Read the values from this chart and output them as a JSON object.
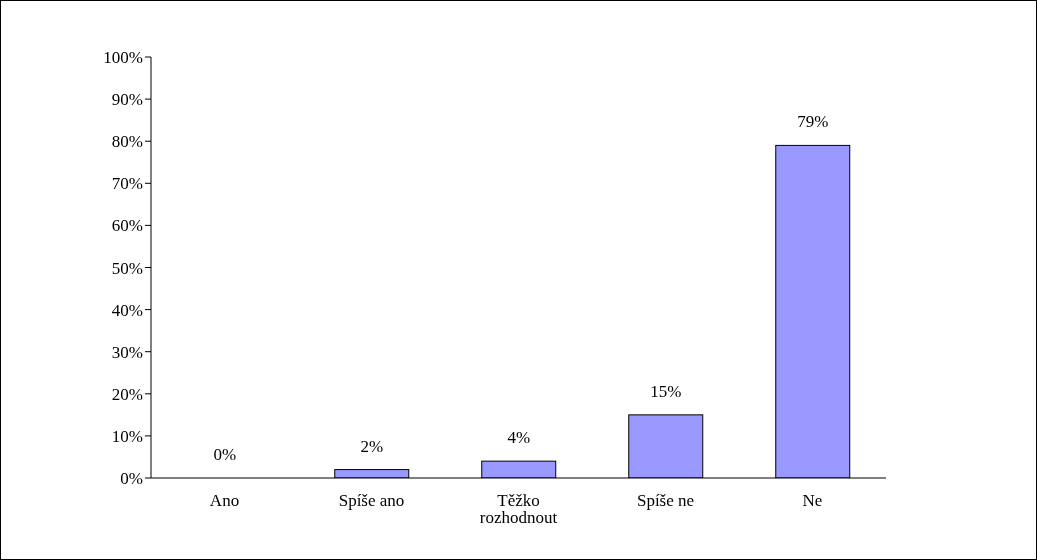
{
  "chart_data": {
    "type": "bar",
    "categories": [
      "Ano",
      "Spíše ano",
      "Těžko rozhodnout",
      "Spíše ne",
      "Ne"
    ],
    "values": [
      0,
      2,
      4,
      15,
      79
    ],
    "value_labels": [
      "0%",
      "2%",
      "4%",
      "15%",
      "79%"
    ],
    "color": "#9999ff",
    "ylim": [
      0,
      100
    ],
    "yticks": [
      {
        "value": 0,
        "label": "0%"
      },
      {
        "value": 10,
        "label": "10%"
      },
      {
        "value": 20,
        "label": "20%"
      },
      {
        "value": 30,
        "label": "30%"
      },
      {
        "value": 40,
        "label": "40%"
      },
      {
        "value": 50,
        "label": "50%"
      },
      {
        "value": 60,
        "label": "60%"
      },
      {
        "value": 70,
        "label": "70%"
      },
      {
        "value": 80,
        "label": "80%"
      },
      {
        "value": 90,
        "label": "90%"
      },
      {
        "value": 100,
        "label": "100%"
      }
    ],
    "grid": false,
    "legend": false
  }
}
